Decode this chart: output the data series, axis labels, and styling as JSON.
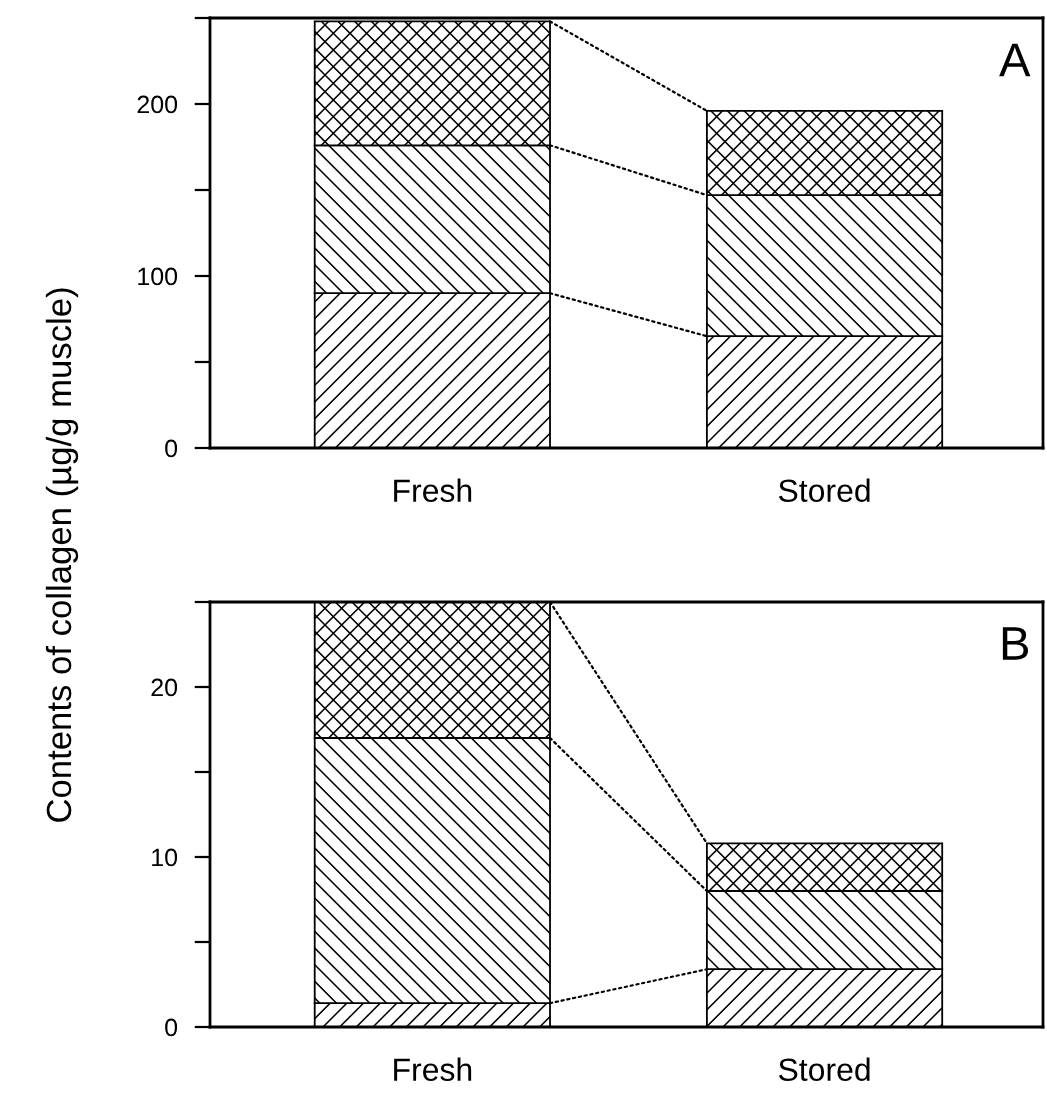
{
  "chart_data": [
    {
      "type": "bar",
      "stacked": true,
      "ylabel": "Contents of collagen (µg/g muscle)",
      "categories": [
        "Fresh",
        "Stored"
      ],
      "series": [
        {
          "color": "#000000",
          "values": [
            90,
            65
          ]
        },
        {
          "color": "#000000",
          "values": [
            86,
            82
          ]
        },
        {
          "color": "#000000",
          "values": [
            72,
            49
          ]
        }
      ],
      "ylim": [
        0,
        250
      ],
      "yticks": [
        0,
        {
          "value": 50,
          "label": null
        },
        100,
        {
          "value": 150,
          "label": null
        },
        200,
        {
          "value": 250,
          "label": null
        }
      ],
      "annotations": [
        "A"
      ],
      "line_style": "dotted"
    },
    {
      "type": "bar",
      "stacked": true,
      "categories": [
        "Fresh",
        "Stored"
      ],
      "series": [
        {
          "color": "#000000",
          "values": [
            1.4,
            3.4
          ]
        },
        {
          "color": "#000000",
          "values": [
            15.6,
            4.6
          ]
        },
        {
          "color": "#000000",
          "values": [
            8,
            2.8
          ]
        }
      ],
      "ylim": [
        0,
        25
      ],
      "yticks": [
        0,
        {
          "value": 5,
          "label": null
        },
        10,
        {
          "value": 15,
          "label": null
        },
        20,
        {
          "value": 25,
          "label": null
        }
      ],
      "annotations": [
        "B"
      ],
      "line_style": "dotted"
    }
  ]
}
